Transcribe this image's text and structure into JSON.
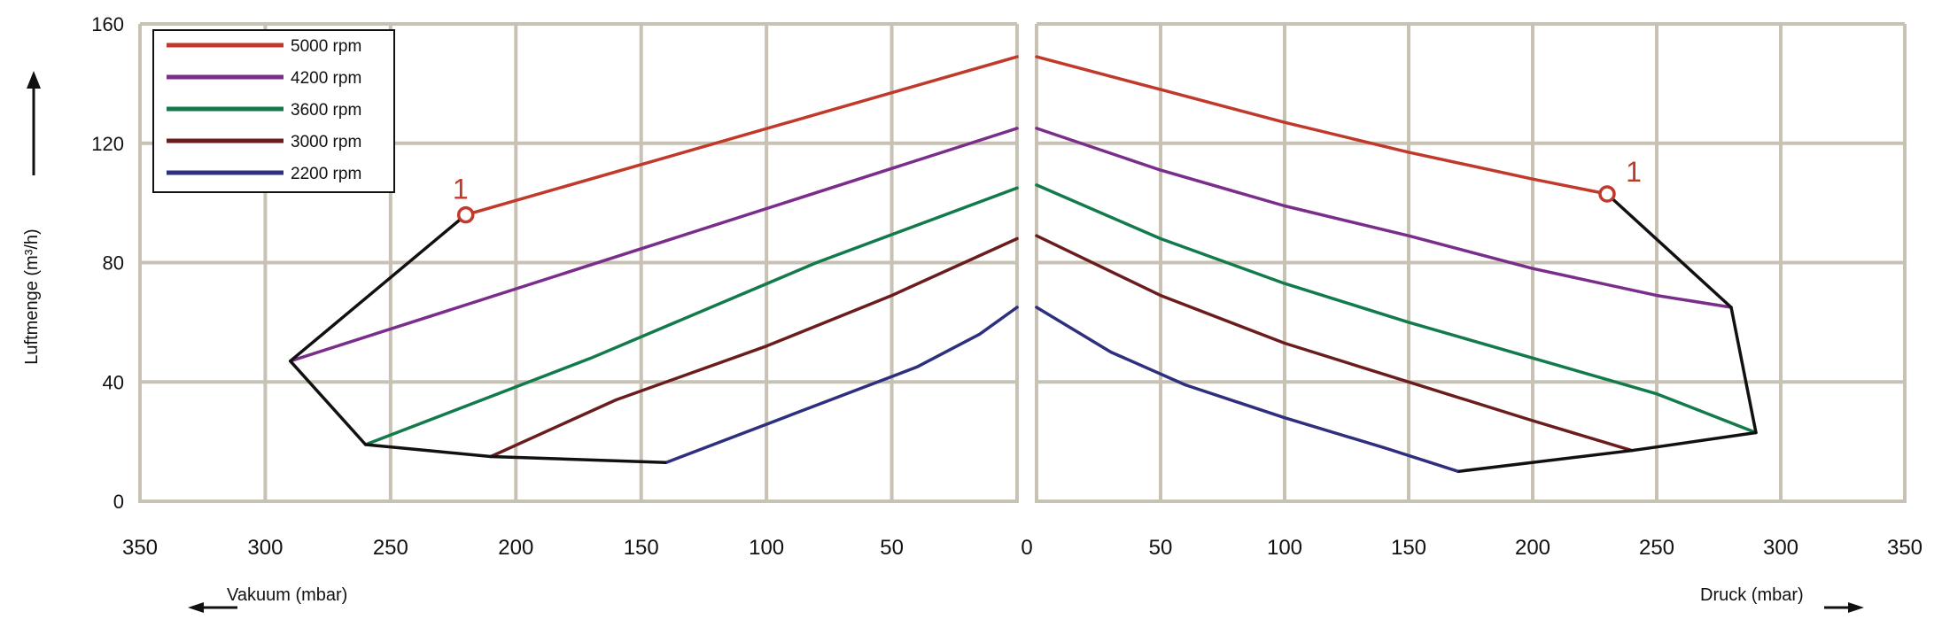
{
  "chart_data": {
    "type": "line",
    "ylabel": "Luftmenge (m³/h)",
    "y_ticks": [
      "0",
      "40",
      "80",
      "120",
      "160"
    ],
    "ylim": [
      0,
      160
    ],
    "grid": true,
    "legend_position": "top-left",
    "colors": {
      "grid": "#c8c2b4",
      "envelope": "#111111",
      "marker": "#c0392b"
    },
    "envelope_marker_label": "1",
    "panels": [
      {
        "name": "vakuum",
        "xlabel": "Vakuum (mbar)",
        "x_reversed": true,
        "xlim": [
          0,
          350
        ],
        "x_ticks": [
          "350",
          "300",
          "250",
          "200",
          "150",
          "100",
          "50",
          "0"
        ],
        "series": [
          {
            "name": "5000 rpm",
            "color": "#c0392b",
            "x": [
              220,
              0
            ],
            "y": [
              96,
              149
            ]
          },
          {
            "name": "4200 rpm",
            "color": "#7b2d8b",
            "x": [
              290,
              0
            ],
            "y": [
              47,
              125
            ]
          },
          {
            "name": "3600 rpm",
            "color": "#137a4b",
            "x": [
              260,
              170,
              80,
              0
            ],
            "y": [
              19,
              48,
              80,
              105
            ]
          },
          {
            "name": "3000 rpm",
            "color": "#6b1d1d",
            "x": [
              210,
              160,
              100,
              50,
              0
            ],
            "y": [
              15,
              34,
              52,
              69,
              88
            ]
          },
          {
            "name": "2200 rpm",
            "color": "#2e2f7e",
            "x": [
              140,
              90,
              40,
              15,
              0
            ],
            "y": [
              13,
              29,
              45,
              56,
              65
            ]
          }
        ],
        "envelope": {
          "x": [
            220,
            290,
            260,
            210,
            140
          ],
          "y": [
            96,
            47,
            19,
            15,
            13
          ]
        },
        "marker": {
          "x": 220,
          "y": 96
        }
      },
      {
        "name": "druck",
        "xlabel": "Druck (mbar)",
        "x_reversed": false,
        "xlim": [
          0,
          350
        ],
        "x_ticks": [
          "0",
          "50",
          "100",
          "150",
          "200",
          "250",
          "300",
          "350"
        ],
        "series": [
          {
            "name": "5000 rpm",
            "color": "#c0392b",
            "x": [
              0,
              50,
              100,
              150,
              200,
              230
            ],
            "y": [
              149,
              138,
              127,
              117,
              108,
              103
            ]
          },
          {
            "name": "4200 rpm",
            "color": "#7b2d8b",
            "x": [
              0,
              50,
              100,
              150,
              200,
              250,
              280
            ],
            "y": [
              125,
              111,
              99,
              89,
              78,
              69,
              65
            ]
          },
          {
            "name": "3600 rpm",
            "color": "#137a4b",
            "x": [
              0,
              50,
              100,
              150,
              200,
              250,
              290
            ],
            "y": [
              106,
              88,
              73,
              60,
              48,
              36,
              23
            ]
          },
          {
            "name": "3000 rpm",
            "color": "#6b1d1d",
            "x": [
              0,
              50,
              100,
              150,
              200,
              240
            ],
            "y": [
              89,
              69,
              53,
              40,
              27,
              17
            ]
          },
          {
            "name": "2200 rpm",
            "color": "#2e2f7e",
            "x": [
              0,
              30,
              60,
              100,
              140,
              170
            ],
            "y": [
              65,
              50,
              39,
              28,
              18,
              10
            ]
          }
        ],
        "envelope": {
          "x": [
            230,
            280,
            290,
            240,
            170
          ],
          "y": [
            103,
            65,
            23,
            17,
            10
          ]
        },
        "marker": {
          "x": 230,
          "y": 103
        }
      }
    ]
  }
}
